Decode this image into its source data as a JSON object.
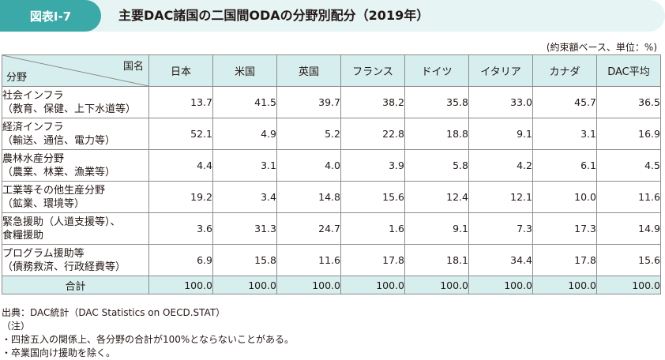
{
  "figure_label": "図表Ⅰ-7",
  "title": "主要DAC諸国の二国間ODAの分野別配分（2019年）",
  "unit_note": "(約束額ベース、単位：%)",
  "corner": {
    "top": "国名",
    "bottom": "分野"
  },
  "columns": [
    "日本",
    "米国",
    "英国",
    "フランス",
    "ドイツ",
    "イタリア",
    "カナダ",
    "DAC平均"
  ],
  "rows": [
    {
      "label_lines": [
        "社会インフラ",
        "（教育、保健、上下水道等）"
      ],
      "values": [
        "13.7",
        "41.5",
        "39.7",
        "38.2",
        "35.8",
        "33.0",
        "45.7",
        "36.5"
      ]
    },
    {
      "label_lines": [
        "経済インフラ",
        "（輸送、通信、電力等）"
      ],
      "values": [
        "52.1",
        "4.9",
        "5.2",
        "22.8",
        "18.8",
        "9.1",
        "3.1",
        "16.9"
      ]
    },
    {
      "label_lines": [
        "農林水産分野",
        "（農業、林業、漁業等）"
      ],
      "values": [
        "4.4",
        "3.1",
        "4.0",
        "3.9",
        "5.8",
        "4.2",
        "6.1",
        "4.5"
      ]
    },
    {
      "label_lines": [
        "工業等その他生産分野",
        "（鉱業、環境等）"
      ],
      "values": [
        "19.2",
        "3.4",
        "14.8",
        "15.6",
        "12.4",
        "12.1",
        "10.0",
        "11.6"
      ]
    },
    {
      "label_lines": [
        "緊急援助（人道支援等）、",
        "食糧援助"
      ],
      "values": [
        "3.6",
        "31.3",
        "24.7",
        "1.6",
        "9.1",
        "7.3",
        "17.3",
        "14.9"
      ]
    },
    {
      "label_lines": [
        "プログラム援助等",
        "（債務救済、行政経費等）"
      ],
      "values": [
        "6.9",
        "15.8",
        "11.6",
        "17.8",
        "18.1",
        "34.4",
        "17.8",
        "15.6"
      ]
    }
  ],
  "total": {
    "label": "合計",
    "values": [
      "100.0",
      "100.0",
      "100.0",
      "100.0",
      "100.0",
      "100.0",
      "100.0",
      "100.0"
    ]
  },
  "footnotes": [
    "出典：DAC統計（DAC Statistics on OECD.STAT）",
    "（注）",
    "・四捨五入の関係上、各分野の合計が100%とならないことがある。",
    "・卒業国向け援助を除く。"
  ],
  "colors": {
    "accent": "#3aa9a8",
    "header_bg": "#e6f4f4",
    "table_header_bg": "#d7eeee"
  }
}
